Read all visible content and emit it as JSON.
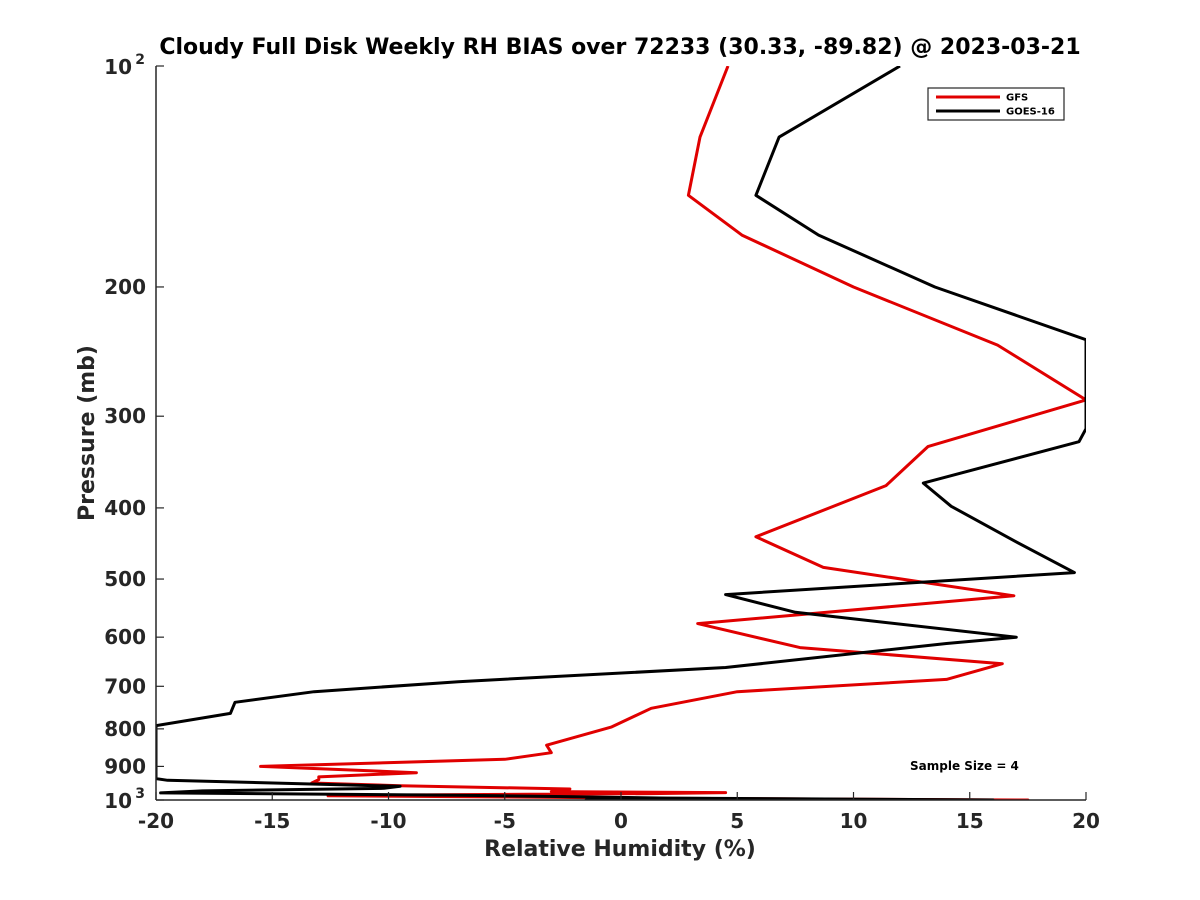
{
  "chart_data": {
    "type": "line",
    "title": "Cloudy Full Disk Weekly RH BIAS over 72233 (30.33, -89.82) @ 2023-03-21",
    "xlabel": "Relative Humidity (%)",
    "ylabel": "Pressure (mb)",
    "xlim": [
      -20,
      20
    ],
    "ylim": [
      100,
      1000
    ],
    "y_scale": "log",
    "y_direction": "reversed",
    "x_ticks": [
      "-20",
      "-15",
      "-10",
      "-5",
      "0",
      "5",
      "10",
      "15",
      "20"
    ],
    "y_ticks": [
      {
        "value": 100,
        "base": "10",
        "exp": "2"
      },
      {
        "value": 200,
        "label": "200"
      },
      {
        "value": 300,
        "label": "300"
      },
      {
        "value": 400,
        "label": "400"
      },
      {
        "value": 500,
        "label": "500"
      },
      {
        "value": 600,
        "label": "600"
      },
      {
        "value": 700,
        "label": "700"
      },
      {
        "value": 800,
        "label": "800"
      },
      {
        "value": 900,
        "label": "900"
      },
      {
        "value": 1000,
        "base": "10",
        "exp": "3"
      }
    ],
    "legend_position": "top-right",
    "annotation": "Sample Size = 4",
    "series": [
      {
        "name": "GFS",
        "color": "#e00000",
        "points": [
          {
            "x": 4.6,
            "y": 100
          },
          {
            "x": 3.4,
            "y": 125
          },
          {
            "x": 2.9,
            "y": 150
          },
          {
            "x": 5.2,
            "y": 170
          },
          {
            "x": 10.0,
            "y": 200
          },
          {
            "x": 16.2,
            "y": 240
          },
          {
            "x": 20.0,
            "y": 285
          },
          {
            "x": 13.2,
            "y": 330
          },
          {
            "x": 11.4,
            "y": 373
          },
          {
            "x": 5.8,
            "y": 438
          },
          {
            "x": 8.7,
            "y": 482
          },
          {
            "x": 16.9,
            "y": 527
          },
          {
            "x": 3.3,
            "y": 575
          },
          {
            "x": 7.7,
            "y": 620
          },
          {
            "x": 16.4,
            "y": 652
          },
          {
            "x": 14.0,
            "y": 685
          },
          {
            "x": 5.0,
            "y": 712
          },
          {
            "x": 1.3,
            "y": 750
          },
          {
            "x": -0.4,
            "y": 795
          },
          {
            "x": -3.2,
            "y": 842
          },
          {
            "x": -3.0,
            "y": 862
          },
          {
            "x": -5.0,
            "y": 880
          },
          {
            "x": -15.5,
            "y": 900
          },
          {
            "x": -8.8,
            "y": 918
          },
          {
            "x": -13.0,
            "y": 930
          },
          {
            "x": -13.0,
            "y": 938
          },
          {
            "x": -13.3,
            "y": 948
          },
          {
            "x": -9.5,
            "y": 956
          },
          {
            "x": -2.2,
            "y": 966
          },
          {
            "x": -3.0,
            "y": 974
          },
          {
            "x": 4.5,
            "y": 977
          },
          {
            "x": 1.3,
            "y": 980
          },
          {
            "x": -8.7,
            "y": 984
          },
          {
            "x": -12.6,
            "y": 987
          },
          {
            "x": -2.7,
            "y": 992
          },
          {
            "x": 0.8,
            "y": 994
          },
          {
            "x": 17.5,
            "y": 1000
          },
          {
            "x": 14.8,
            "y": 1000
          },
          {
            "x": 16.5,
            "y": 1000
          },
          {
            "x": 2.2,
            "y": 1000
          },
          {
            "x": 8.5,
            "y": 1000
          },
          {
            "x": 5.5,
            "y": 1000
          },
          {
            "x": 2.5,
            "y": 1000
          }
        ]
      },
      {
        "name": "GOES-16",
        "color": "#000000",
        "points": [
          {
            "x": 12.0,
            "y": 100
          },
          {
            "x": 6.8,
            "y": 125
          },
          {
            "x": 5.8,
            "y": 150
          },
          {
            "x": 8.5,
            "y": 170
          },
          {
            "x": 13.5,
            "y": 200
          },
          {
            "x": 20.0,
            "y": 236
          },
          {
            "x": 20.0,
            "y": 312
          },
          {
            "x": 19.7,
            "y": 325
          },
          {
            "x": 13.0,
            "y": 370
          },
          {
            "x": 14.2,
            "y": 398
          },
          {
            "x": 17.0,
            "y": 445
          },
          {
            "x": 19.5,
            "y": 490
          },
          {
            "x": 4.5,
            "y": 525
          },
          {
            "x": 7.5,
            "y": 555
          },
          {
            "x": 17.0,
            "y": 600
          },
          {
            "x": 14.0,
            "y": 612
          },
          {
            "x": 4.5,
            "y": 660
          },
          {
            "x": -7.0,
            "y": 690
          },
          {
            "x": -13.2,
            "y": 712
          },
          {
            "x": -16.6,
            "y": 736
          },
          {
            "x": -16.8,
            "y": 762
          },
          {
            "x": -20.0,
            "y": 792
          },
          {
            "x": -20.0,
            "y": 935
          },
          {
            "x": -19.5,
            "y": 940
          },
          {
            "x": -9.5,
            "y": 958
          },
          {
            "x": -10.2,
            "y": 964
          },
          {
            "x": -18.0,
            "y": 972
          },
          {
            "x": -19.8,
            "y": 978
          },
          {
            "x": -7.0,
            "y": 985
          },
          {
            "x": -2.0,
            "y": 990
          },
          {
            "x": 2.0,
            "y": 994
          },
          {
            "x": 16.0,
            "y": 1000
          },
          {
            "x": 12.0,
            "y": 1000
          },
          {
            "x": 15.0,
            "y": 1000
          },
          {
            "x": -1.5,
            "y": 1000
          },
          {
            "x": 5.0,
            "y": 1000
          },
          {
            "x": 3.0,
            "y": 1000
          },
          {
            "x": 4.5,
            "y": 1000
          },
          {
            "x": 2.5,
            "y": 1000
          }
        ]
      }
    ]
  }
}
